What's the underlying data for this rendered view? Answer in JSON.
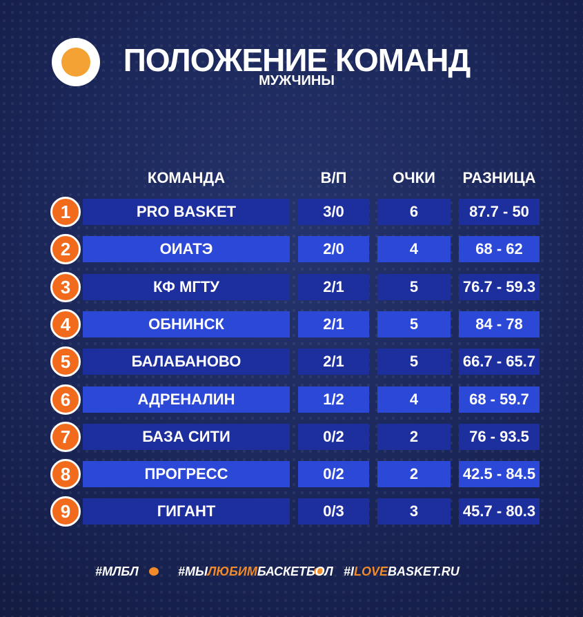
{
  "header": {
    "title": "ПОЛОЖЕНИЕ КОМАНД",
    "subtitle": "МУЖЧИНЫ"
  },
  "table": {
    "columns": [
      "КОМАНДА",
      "В/П",
      "ОЧКИ",
      "РАЗНИЦА"
    ],
    "rows": [
      [
        1,
        "PRO BASKET",
        "3/0",
        6,
        "87.7 - 50"
      ],
      [
        2,
        "ОИАТЭ",
        "2/0",
        4,
        "68 - 62"
      ],
      [
        3,
        "КФ МГТУ",
        "2/1",
        5,
        "76.7 - 59.3"
      ],
      [
        4,
        "ОБНИНСК",
        "2/1",
        5,
        "84 - 78"
      ],
      [
        5,
        "БАЛАБАНОВО",
        "2/1",
        5,
        "66.7 - 65.7"
      ],
      [
        6,
        "АДРЕНАЛИН",
        "1/2",
        4,
        "68 - 59.7"
      ],
      [
        7,
        "БАЗА СИТИ",
        "0/2",
        2,
        "76 - 93.5"
      ],
      [
        8,
        "ПРОГРЕСС",
        "0/2",
        2,
        "42.5 - 84.5"
      ],
      [
        9,
        "ГИГАНТ",
        "0/3",
        3,
        "45.7 - 80.3"
      ]
    ]
  },
  "footer": {
    "tags": [
      [
        "#МЛБЛ"
      ],
      [
        "#МЫ",
        "ЛЮБИМ",
        "БАСКЕТБОЛ"
      ],
      [
        "#I",
        "LOVE",
        "BASKET.RU"
      ]
    ]
  }
}
